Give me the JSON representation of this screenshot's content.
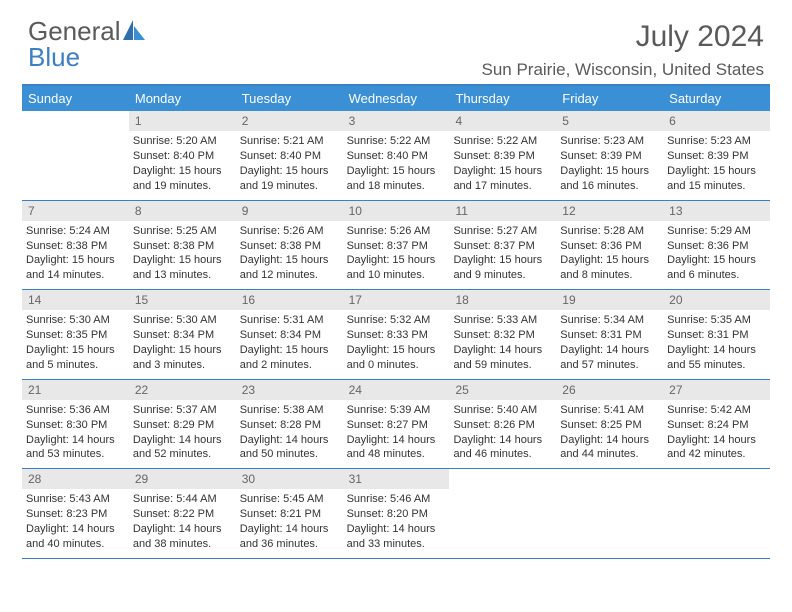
{
  "logo": {
    "part1": "General",
    "part2": "Blue"
  },
  "title": "July 2024",
  "location": "Sun Prairie, Wisconsin, United States",
  "colors": {
    "header_bg": "#3b8fd4",
    "accent": "#3b7fc4",
    "daynum_bg": "#e8e8e8",
    "text": "#333333",
    "muted": "#5a5a5a"
  },
  "headers": [
    "Sunday",
    "Monday",
    "Tuesday",
    "Wednesday",
    "Thursday",
    "Friday",
    "Saturday"
  ],
  "weeks": [
    [
      null,
      {
        "n": "1",
        "sr": "Sunrise: 5:20 AM",
        "ss": "Sunset: 8:40 PM",
        "d1": "Daylight: 15 hours",
        "d2": "and 19 minutes."
      },
      {
        "n": "2",
        "sr": "Sunrise: 5:21 AM",
        "ss": "Sunset: 8:40 PM",
        "d1": "Daylight: 15 hours",
        "d2": "and 19 minutes."
      },
      {
        "n": "3",
        "sr": "Sunrise: 5:22 AM",
        "ss": "Sunset: 8:40 PM",
        "d1": "Daylight: 15 hours",
        "d2": "and 18 minutes."
      },
      {
        "n": "4",
        "sr": "Sunrise: 5:22 AM",
        "ss": "Sunset: 8:39 PM",
        "d1": "Daylight: 15 hours",
        "d2": "and 17 minutes."
      },
      {
        "n": "5",
        "sr": "Sunrise: 5:23 AM",
        "ss": "Sunset: 8:39 PM",
        "d1": "Daylight: 15 hours",
        "d2": "and 16 minutes."
      },
      {
        "n": "6",
        "sr": "Sunrise: 5:23 AM",
        "ss": "Sunset: 8:39 PM",
        "d1": "Daylight: 15 hours",
        "d2": "and 15 minutes."
      }
    ],
    [
      {
        "n": "7",
        "sr": "Sunrise: 5:24 AM",
        "ss": "Sunset: 8:38 PM",
        "d1": "Daylight: 15 hours",
        "d2": "and 14 minutes."
      },
      {
        "n": "8",
        "sr": "Sunrise: 5:25 AM",
        "ss": "Sunset: 8:38 PM",
        "d1": "Daylight: 15 hours",
        "d2": "and 13 minutes."
      },
      {
        "n": "9",
        "sr": "Sunrise: 5:26 AM",
        "ss": "Sunset: 8:38 PM",
        "d1": "Daylight: 15 hours",
        "d2": "and 12 minutes."
      },
      {
        "n": "10",
        "sr": "Sunrise: 5:26 AM",
        "ss": "Sunset: 8:37 PM",
        "d1": "Daylight: 15 hours",
        "d2": "and 10 minutes."
      },
      {
        "n": "11",
        "sr": "Sunrise: 5:27 AM",
        "ss": "Sunset: 8:37 PM",
        "d1": "Daylight: 15 hours",
        "d2": "and 9 minutes."
      },
      {
        "n": "12",
        "sr": "Sunrise: 5:28 AM",
        "ss": "Sunset: 8:36 PM",
        "d1": "Daylight: 15 hours",
        "d2": "and 8 minutes."
      },
      {
        "n": "13",
        "sr": "Sunrise: 5:29 AM",
        "ss": "Sunset: 8:36 PM",
        "d1": "Daylight: 15 hours",
        "d2": "and 6 minutes."
      }
    ],
    [
      {
        "n": "14",
        "sr": "Sunrise: 5:30 AM",
        "ss": "Sunset: 8:35 PM",
        "d1": "Daylight: 15 hours",
        "d2": "and 5 minutes."
      },
      {
        "n": "15",
        "sr": "Sunrise: 5:30 AM",
        "ss": "Sunset: 8:34 PM",
        "d1": "Daylight: 15 hours",
        "d2": "and 3 minutes."
      },
      {
        "n": "16",
        "sr": "Sunrise: 5:31 AM",
        "ss": "Sunset: 8:34 PM",
        "d1": "Daylight: 15 hours",
        "d2": "and 2 minutes."
      },
      {
        "n": "17",
        "sr": "Sunrise: 5:32 AM",
        "ss": "Sunset: 8:33 PM",
        "d1": "Daylight: 15 hours",
        "d2": "and 0 minutes."
      },
      {
        "n": "18",
        "sr": "Sunrise: 5:33 AM",
        "ss": "Sunset: 8:32 PM",
        "d1": "Daylight: 14 hours",
        "d2": "and 59 minutes."
      },
      {
        "n": "19",
        "sr": "Sunrise: 5:34 AM",
        "ss": "Sunset: 8:31 PM",
        "d1": "Daylight: 14 hours",
        "d2": "and 57 minutes."
      },
      {
        "n": "20",
        "sr": "Sunrise: 5:35 AM",
        "ss": "Sunset: 8:31 PM",
        "d1": "Daylight: 14 hours",
        "d2": "and 55 minutes."
      }
    ],
    [
      {
        "n": "21",
        "sr": "Sunrise: 5:36 AM",
        "ss": "Sunset: 8:30 PM",
        "d1": "Daylight: 14 hours",
        "d2": "and 53 minutes."
      },
      {
        "n": "22",
        "sr": "Sunrise: 5:37 AM",
        "ss": "Sunset: 8:29 PM",
        "d1": "Daylight: 14 hours",
        "d2": "and 52 minutes."
      },
      {
        "n": "23",
        "sr": "Sunrise: 5:38 AM",
        "ss": "Sunset: 8:28 PM",
        "d1": "Daylight: 14 hours",
        "d2": "and 50 minutes."
      },
      {
        "n": "24",
        "sr": "Sunrise: 5:39 AM",
        "ss": "Sunset: 8:27 PM",
        "d1": "Daylight: 14 hours",
        "d2": "and 48 minutes."
      },
      {
        "n": "25",
        "sr": "Sunrise: 5:40 AM",
        "ss": "Sunset: 8:26 PM",
        "d1": "Daylight: 14 hours",
        "d2": "and 46 minutes."
      },
      {
        "n": "26",
        "sr": "Sunrise: 5:41 AM",
        "ss": "Sunset: 8:25 PM",
        "d1": "Daylight: 14 hours",
        "d2": "and 44 minutes."
      },
      {
        "n": "27",
        "sr": "Sunrise: 5:42 AM",
        "ss": "Sunset: 8:24 PM",
        "d1": "Daylight: 14 hours",
        "d2": "and 42 minutes."
      }
    ],
    [
      {
        "n": "28",
        "sr": "Sunrise: 5:43 AM",
        "ss": "Sunset: 8:23 PM",
        "d1": "Daylight: 14 hours",
        "d2": "and 40 minutes."
      },
      {
        "n": "29",
        "sr": "Sunrise: 5:44 AM",
        "ss": "Sunset: 8:22 PM",
        "d1": "Daylight: 14 hours",
        "d2": "and 38 minutes."
      },
      {
        "n": "30",
        "sr": "Sunrise: 5:45 AM",
        "ss": "Sunset: 8:21 PM",
        "d1": "Daylight: 14 hours",
        "d2": "and 36 minutes."
      },
      {
        "n": "31",
        "sr": "Sunrise: 5:46 AM",
        "ss": "Sunset: 8:20 PM",
        "d1": "Daylight: 14 hours",
        "d2": "and 33 minutes."
      },
      null,
      null,
      null
    ]
  ]
}
